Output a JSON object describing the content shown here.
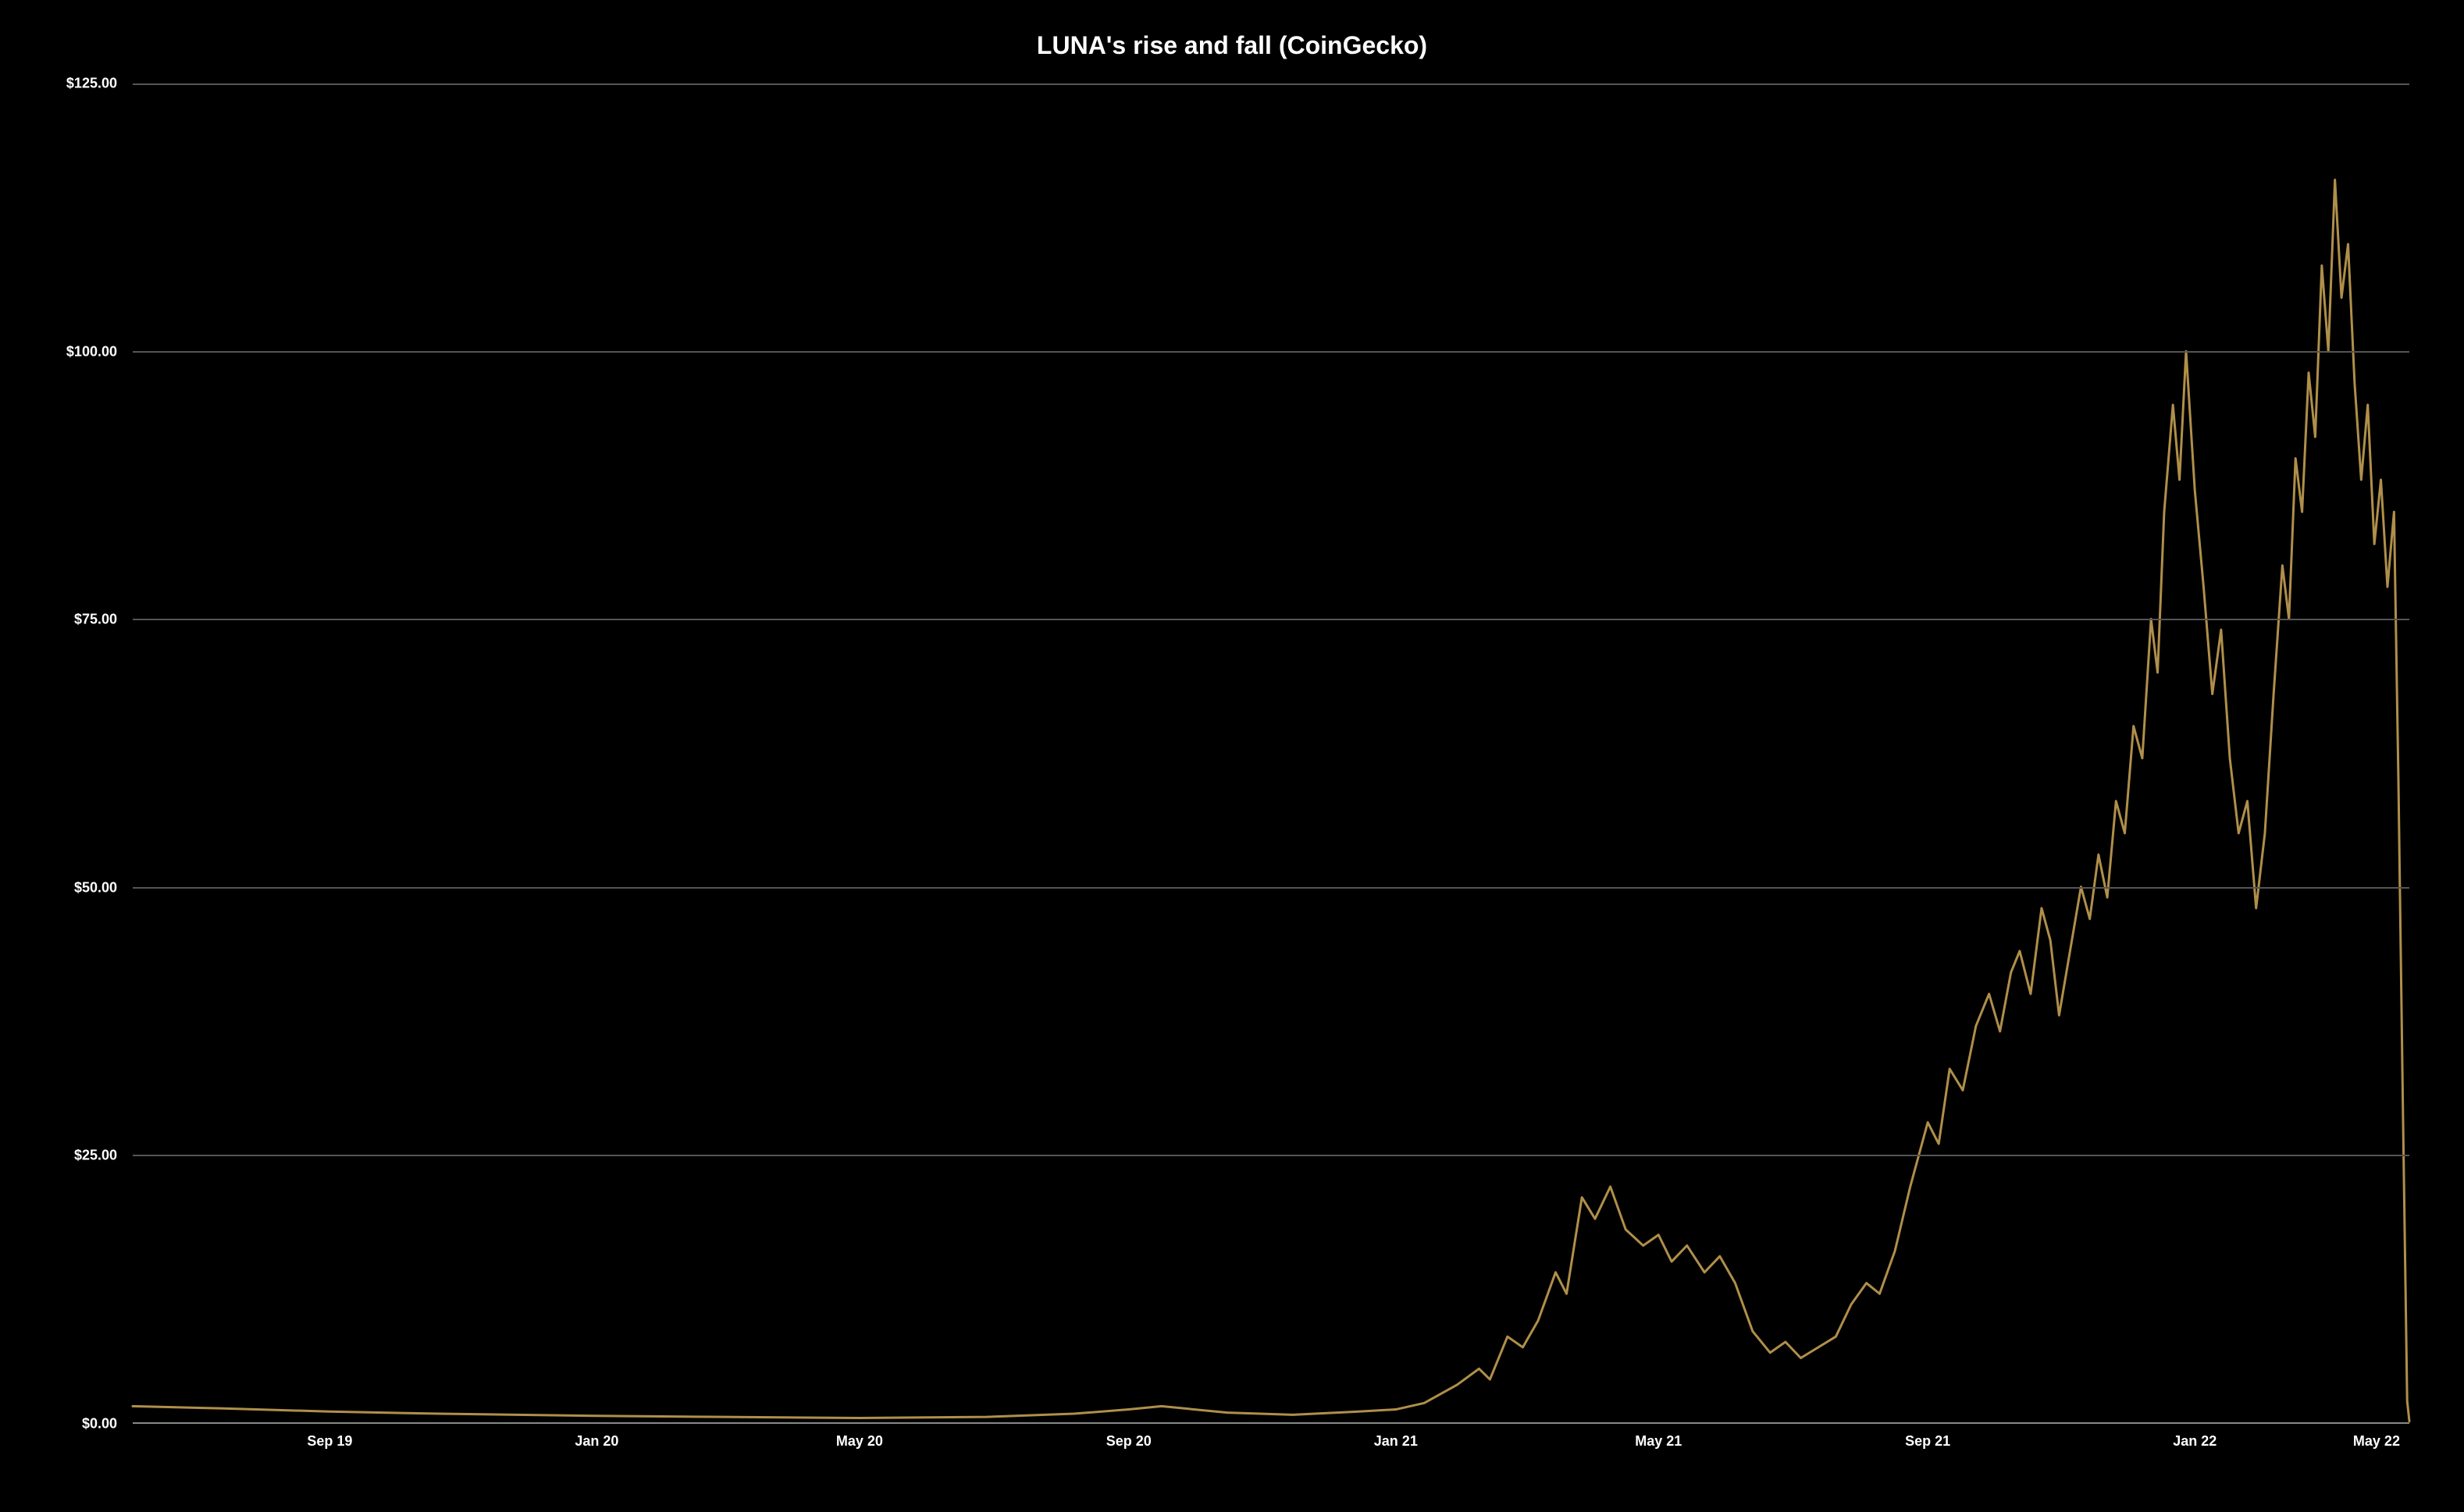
{
  "chart": {
    "type": "line",
    "title": "LUNA's rise and fall (CoinGecko)",
    "title_fontsize": 32,
    "title_color": "#ffffff",
    "background_color": "#000000",
    "line_color": "#b08f4a",
    "line_width": 3,
    "grid_color": "#555555",
    "axis_line_color": "#888888",
    "label_color": "#ffffff",
    "label_fontsize": 18,
    "ylim": [
      0,
      125
    ],
    "ytick_step": 25,
    "yticks": [
      {
        "value": 0,
        "label": "$0.00"
      },
      {
        "value": 25,
        "label": "$25.00"
      },
      {
        "value": 50,
        "label": "$50.00"
      },
      {
        "value": 75,
        "label": "$75.00"
      },
      {
        "value": 100,
        "label": "$100.00"
      },
      {
        "value": 125,
        "label": "$125.00"
      }
    ],
    "xlim": [
      0,
      1040
    ],
    "xticks": [
      {
        "value": 90,
        "label": "Sep 19"
      },
      {
        "value": 212,
        "label": "Jan 20"
      },
      {
        "value": 332,
        "label": "May 20"
      },
      {
        "value": 455,
        "label": "Sep 20"
      },
      {
        "value": 577,
        "label": "Jan 21"
      },
      {
        "value": 697,
        "label": "May 21"
      },
      {
        "value": 820,
        "label": "Sep 21"
      },
      {
        "value": 942,
        "label": "Jan 22"
      },
      {
        "value": 1025,
        "label": "May 22"
      }
    ],
    "data": [
      {
        "x": 0,
        "y": 1.5
      },
      {
        "x": 40,
        "y": 1.3
      },
      {
        "x": 90,
        "y": 1.0
      },
      {
        "x": 140,
        "y": 0.8
      },
      {
        "x": 212,
        "y": 0.6
      },
      {
        "x": 270,
        "y": 0.5
      },
      {
        "x": 332,
        "y": 0.4
      },
      {
        "x": 390,
        "y": 0.5
      },
      {
        "x": 430,
        "y": 0.8
      },
      {
        "x": 455,
        "y": 1.2
      },
      {
        "x": 470,
        "y": 1.5
      },
      {
        "x": 500,
        "y": 0.9
      },
      {
        "x": 530,
        "y": 0.7
      },
      {
        "x": 560,
        "y": 1.0
      },
      {
        "x": 577,
        "y": 1.2
      },
      {
        "x": 590,
        "y": 1.8
      },
      {
        "x": 605,
        "y": 3.5
      },
      {
        "x": 615,
        "y": 5.0
      },
      {
        "x": 620,
        "y": 4.0
      },
      {
        "x": 628,
        "y": 8.0
      },
      {
        "x": 635,
        "y": 7.0
      },
      {
        "x": 642,
        "y": 9.5
      },
      {
        "x": 650,
        "y": 14.0
      },
      {
        "x": 655,
        "y": 12.0
      },
      {
        "x": 662,
        "y": 21.0
      },
      {
        "x": 668,
        "y": 19.0
      },
      {
        "x": 675,
        "y": 22.0
      },
      {
        "x": 682,
        "y": 18.0
      },
      {
        "x": 690,
        "y": 16.5
      },
      {
        "x": 697,
        "y": 17.5
      },
      {
        "x": 703,
        "y": 15.0
      },
      {
        "x": 710,
        "y": 16.5
      },
      {
        "x": 718,
        "y": 14.0
      },
      {
        "x": 725,
        "y": 15.5
      },
      {
        "x": 732,
        "y": 13.0
      },
      {
        "x": 740,
        "y": 8.5
      },
      {
        "x": 748,
        "y": 6.5
      },
      {
        "x": 755,
        "y": 7.5
      },
      {
        "x": 762,
        "y": 6.0
      },
      {
        "x": 770,
        "y": 7.0
      },
      {
        "x": 778,
        "y": 8.0
      },
      {
        "x": 785,
        "y": 11.0
      },
      {
        "x": 792,
        "y": 13.0
      },
      {
        "x": 798,
        "y": 12.0
      },
      {
        "x": 805,
        "y": 16.0
      },
      {
        "x": 812,
        "y": 22.0
      },
      {
        "x": 820,
        "y": 28.0
      },
      {
        "x": 825,
        "y": 26.0
      },
      {
        "x": 830,
        "y": 33.0
      },
      {
        "x": 836,
        "y": 31.0
      },
      {
        "x": 842,
        "y": 37.0
      },
      {
        "x": 848,
        "y": 40.0
      },
      {
        "x": 853,
        "y": 36.5
      },
      {
        "x": 858,
        "y": 42.0
      },
      {
        "x": 862,
        "y": 44.0
      },
      {
        "x": 867,
        "y": 40.0
      },
      {
        "x": 872,
        "y": 48.0
      },
      {
        "x": 876,
        "y": 45.0
      },
      {
        "x": 880,
        "y": 38.0
      },
      {
        "x": 885,
        "y": 44.0
      },
      {
        "x": 890,
        "y": 50.0
      },
      {
        "x": 894,
        "y": 47.0
      },
      {
        "x": 898,
        "y": 53.0
      },
      {
        "x": 902,
        "y": 49.0
      },
      {
        "x": 906,
        "y": 58.0
      },
      {
        "x": 910,
        "y": 55.0
      },
      {
        "x": 914,
        "y": 65.0
      },
      {
        "x": 918,
        "y": 62.0
      },
      {
        "x": 922,
        "y": 75.0
      },
      {
        "x": 925,
        "y": 70.0
      },
      {
        "x": 928,
        "y": 85.0
      },
      {
        "x": 932,
        "y": 95.0
      },
      {
        "x": 935,
        "y": 88.0
      },
      {
        "x": 938,
        "y": 100.0
      },
      {
        "x": 942,
        "y": 87.0
      },
      {
        "x": 946,
        "y": 78.0
      },
      {
        "x": 950,
        "y": 68.0
      },
      {
        "x": 954,
        "y": 74.0
      },
      {
        "x": 958,
        "y": 62.0
      },
      {
        "x": 962,
        "y": 55.0
      },
      {
        "x": 966,
        "y": 58.0
      },
      {
        "x": 970,
        "y": 48.0
      },
      {
        "x": 974,
        "y": 55.0
      },
      {
        "x": 978,
        "y": 68.0
      },
      {
        "x": 982,
        "y": 80.0
      },
      {
        "x": 985,
        "y": 75.0
      },
      {
        "x": 988,
        "y": 90.0
      },
      {
        "x": 991,
        "y": 85.0
      },
      {
        "x": 994,
        "y": 98.0
      },
      {
        "x": 997,
        "y": 92.0
      },
      {
        "x": 1000,
        "y": 108.0
      },
      {
        "x": 1003,
        "y": 100.0
      },
      {
        "x": 1006,
        "y": 116.0
      },
      {
        "x": 1009,
        "y": 105.0
      },
      {
        "x": 1012,
        "y": 110.0
      },
      {
        "x": 1015,
        "y": 97.0
      },
      {
        "x": 1018,
        "y": 88.0
      },
      {
        "x": 1021,
        "y": 95.0
      },
      {
        "x": 1024,
        "y": 82.0
      },
      {
        "x": 1027,
        "y": 88.0
      },
      {
        "x": 1030,
        "y": 78.0
      },
      {
        "x": 1033,
        "y": 85.0
      },
      {
        "x": 1035,
        "y": 60.0
      },
      {
        "x": 1037,
        "y": 30.0
      },
      {
        "x": 1039,
        "y": 2.0
      },
      {
        "x": 1040,
        "y": 0.1
      }
    ]
  }
}
